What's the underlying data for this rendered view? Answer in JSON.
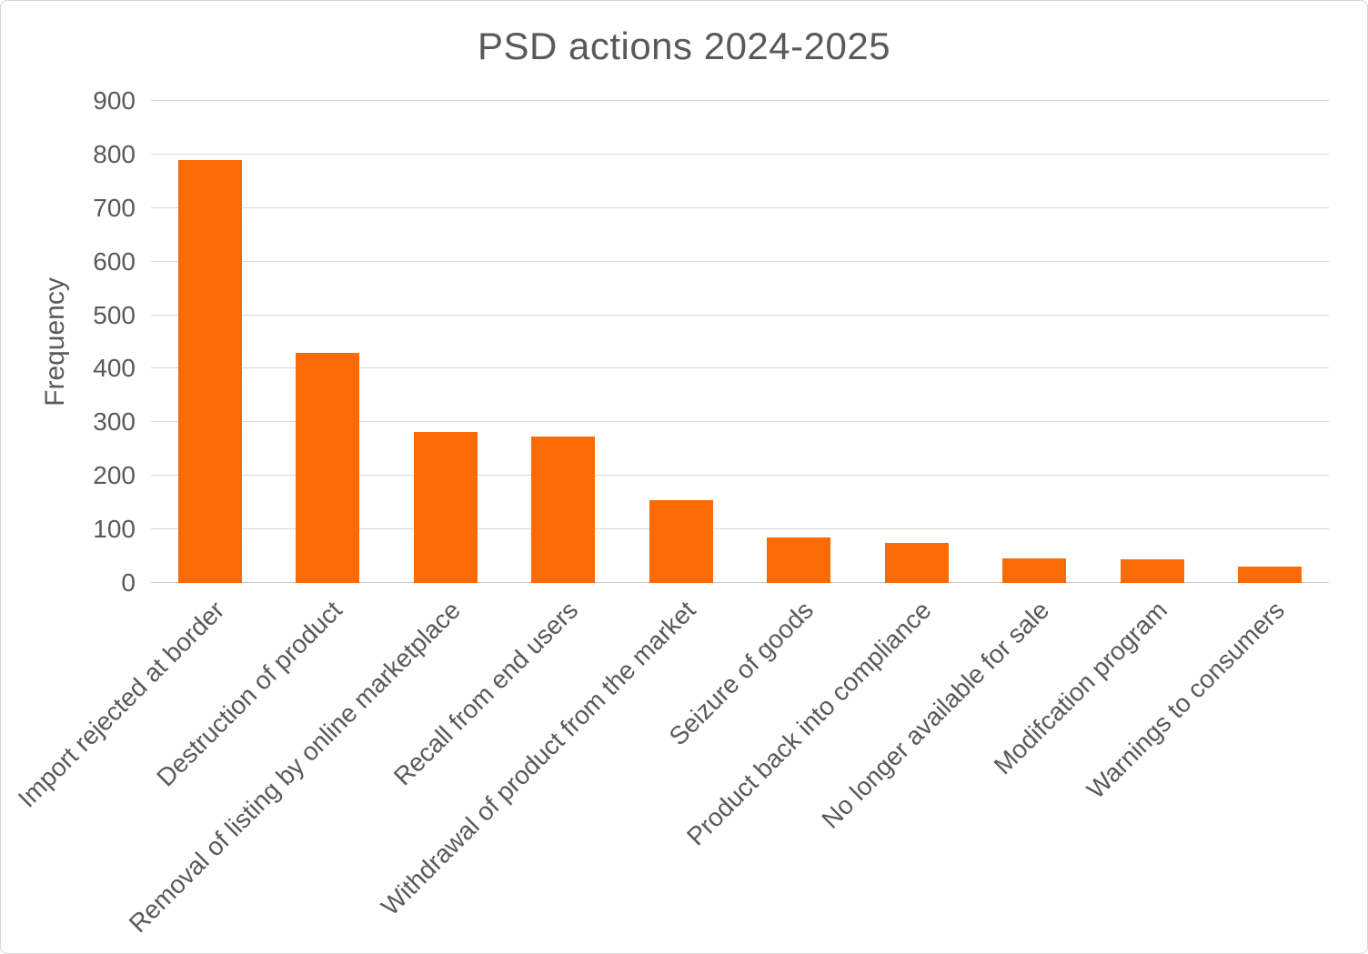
{
  "chart_data": {
    "type": "bar",
    "title": "PSD actions 2024-2025",
    "xlabel": "",
    "ylabel": "Frequency",
    "categories": [
      "Import rejected at border",
      "Destruction of product",
      "Removal of listing by online marketplace",
      "Recall from end users",
      "Withdrawal of product from the market",
      "Seizure of goods",
      "Product back into compliance",
      "No longer available for sale",
      "Modifcation program",
      "Warnings to consumers"
    ],
    "values": [
      790,
      430,
      282,
      273,
      155,
      85,
      75,
      46,
      45,
      30
    ],
    "ylim": [
      0,
      900
    ],
    "yticks": [
      0,
      100,
      200,
      300,
      400,
      500,
      600,
      700,
      800,
      900
    ],
    "bar_color": "#FA6B05",
    "gridline_color": "#d9d9d9",
    "text_color": "#595959",
    "grid": "horizontal",
    "legend": "none"
  }
}
